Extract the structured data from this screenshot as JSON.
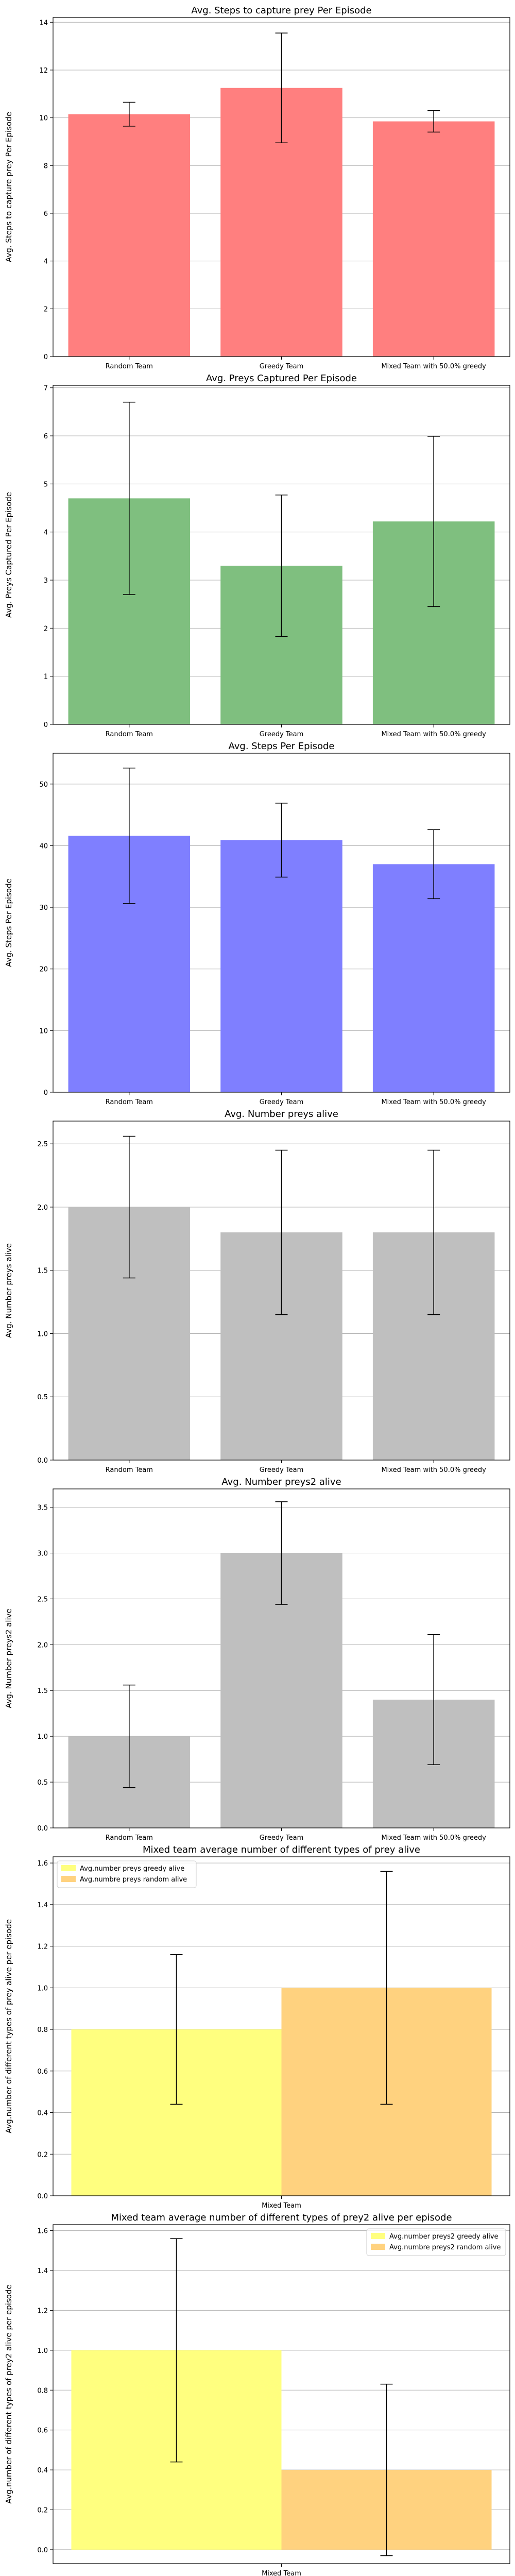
{
  "chart_data": [
    {
      "type": "bar",
      "title": "Avg. Steps to capture prey Per Episode",
      "ylabel": "Avg. Steps to capture prey Per Episode",
      "xlabel": "",
      "categories": [
        "Random Team",
        "Greedy Team",
        "Mixed Team with 50.0% greedy"
      ],
      "values": [
        10.15,
        11.25,
        9.85
      ],
      "errors": [
        0.5,
        2.3,
        0.45
      ],
      "ylim": [
        0,
        14.2
      ],
      "yticks": [
        0,
        2,
        4,
        6,
        8,
        10,
        12,
        14
      ],
      "color": "#ff7f7f",
      "grid": "y"
    },
    {
      "type": "bar",
      "title": "Avg. Preys Captured Per Episode",
      "ylabel": "Avg. Preys Captured Per Episode",
      "xlabel": "",
      "categories": [
        "Random Team",
        "Greedy Team",
        "Mixed Team with 50.0% greedy"
      ],
      "values": [
        4.7,
        3.3,
        4.22
      ],
      "errors": [
        2.0,
        1.47,
        1.77
      ],
      "ylim": [
        0,
        7.05
      ],
      "yticks": [
        0,
        1,
        2,
        3,
        4,
        5,
        6,
        7
      ],
      "color": "#7fbf7f",
      "grid": "y"
    },
    {
      "type": "bar",
      "title": "Avg. Steps Per Episode",
      "ylabel": "Avg. Steps Per Episode",
      "xlabel": "",
      "categories": [
        "Random Team",
        "Greedy Team",
        "Mixed Team with 50.0% greedy"
      ],
      "values": [
        41.6,
        40.9,
        37.0
      ],
      "errors": [
        11.0,
        6.0,
        5.6
      ],
      "ylim": [
        0,
        55
      ],
      "yticks": [
        0,
        10,
        20,
        30,
        40,
        50
      ],
      "color": "#7f7fff",
      "grid": "y"
    },
    {
      "type": "bar",
      "title": "Avg. Number preys alive",
      "ylabel": "Avg. Number preys alive",
      "xlabel": "",
      "categories": [
        "Random Team",
        "Greedy Team",
        "Mixed Team with 50.0% greedy"
      ],
      "values": [
        2.0,
        1.8,
        1.8
      ],
      "errors": [
        0.56,
        0.65,
        0.65
      ],
      "ylim": [
        0,
        2.68
      ],
      "yticks": [
        0.0,
        0.5,
        1.0,
        1.5,
        2.0,
        2.5
      ],
      "yticklabels": [
        "0.0",
        "0.5",
        "1.0",
        "1.5",
        "2.0",
        "2.5"
      ],
      "color": "#bfbfbf",
      "grid": "y"
    },
    {
      "type": "bar",
      "title": "Avg. Number preys2 alive",
      "ylabel": "Avg. Number preys2 alive",
      "xlabel": "",
      "categories": [
        "Random Team",
        "Greedy Team",
        "Mixed Team with 50.0% greedy"
      ],
      "values": [
        1.0,
        3.0,
        1.4
      ],
      "errors": [
        0.56,
        0.56,
        0.71
      ],
      "ylim": [
        0,
        3.7
      ],
      "yticks": [
        0.0,
        0.5,
        1.0,
        1.5,
        2.0,
        2.5,
        3.0,
        3.5
      ],
      "yticklabels": [
        "0.0",
        "0.5",
        "1.0",
        "1.5",
        "2.0",
        "2.5",
        "3.0",
        "3.5"
      ],
      "color": "#bfbfbf",
      "grid": "y"
    },
    {
      "type": "bar",
      "title": "Mixed team average number of different types of prey alive",
      "ylabel": "Avg.number of different types of prey alive per episode",
      "xlabel": "",
      "categories": [
        "Mixed Team"
      ],
      "series": [
        {
          "name": "Avg.number preys greedy alive",
          "values": [
            0.8
          ],
          "errors": [
            0.36
          ],
          "color": "#ffff7f"
        },
        {
          "name": "Avg.numbre preys random alive",
          "values": [
            1.0
          ],
          "errors": [
            0.56
          ],
          "color": "#ffd27f"
        }
      ],
      "ylim": [
        0,
        1.63
      ],
      "yticks": [
        0.0,
        0.2,
        0.4,
        0.6,
        0.8,
        1.0,
        1.2,
        1.4,
        1.6
      ],
      "yticklabels": [
        "0.0",
        "0.2",
        "0.4",
        "0.6",
        "0.8",
        "1.0",
        "1.2",
        "1.4",
        "1.6"
      ],
      "grid": "y",
      "legend": "top-left"
    },
    {
      "type": "bar",
      "title": "Mixed team average number of different types of prey2 alive per episode",
      "ylabel": "Avg.number of different types of prey2 alive per episode",
      "xlabel": "",
      "categories": [
        "Mixed Team"
      ],
      "series": [
        {
          "name": "Avg.number preys2 greedy alive",
          "values": [
            1.0
          ],
          "errors": [
            0.56
          ],
          "color": "#ffff7f"
        },
        {
          "name": "Avg.numbre preys2 random alive",
          "values": [
            0.4
          ],
          "errors": [
            0.43
          ],
          "color": "#ffd27f"
        }
      ],
      "ylim": [
        -0.07,
        1.63
      ],
      "yticks": [
        0.0,
        0.2,
        0.4,
        0.6,
        0.8,
        1.0,
        1.2,
        1.4,
        1.6
      ],
      "yticklabels": [
        "0.0",
        "0.2",
        "0.4",
        "0.6",
        "0.8",
        "1.0",
        "1.2",
        "1.4",
        "1.6"
      ],
      "grid": "y",
      "legend": "top-right"
    }
  ]
}
